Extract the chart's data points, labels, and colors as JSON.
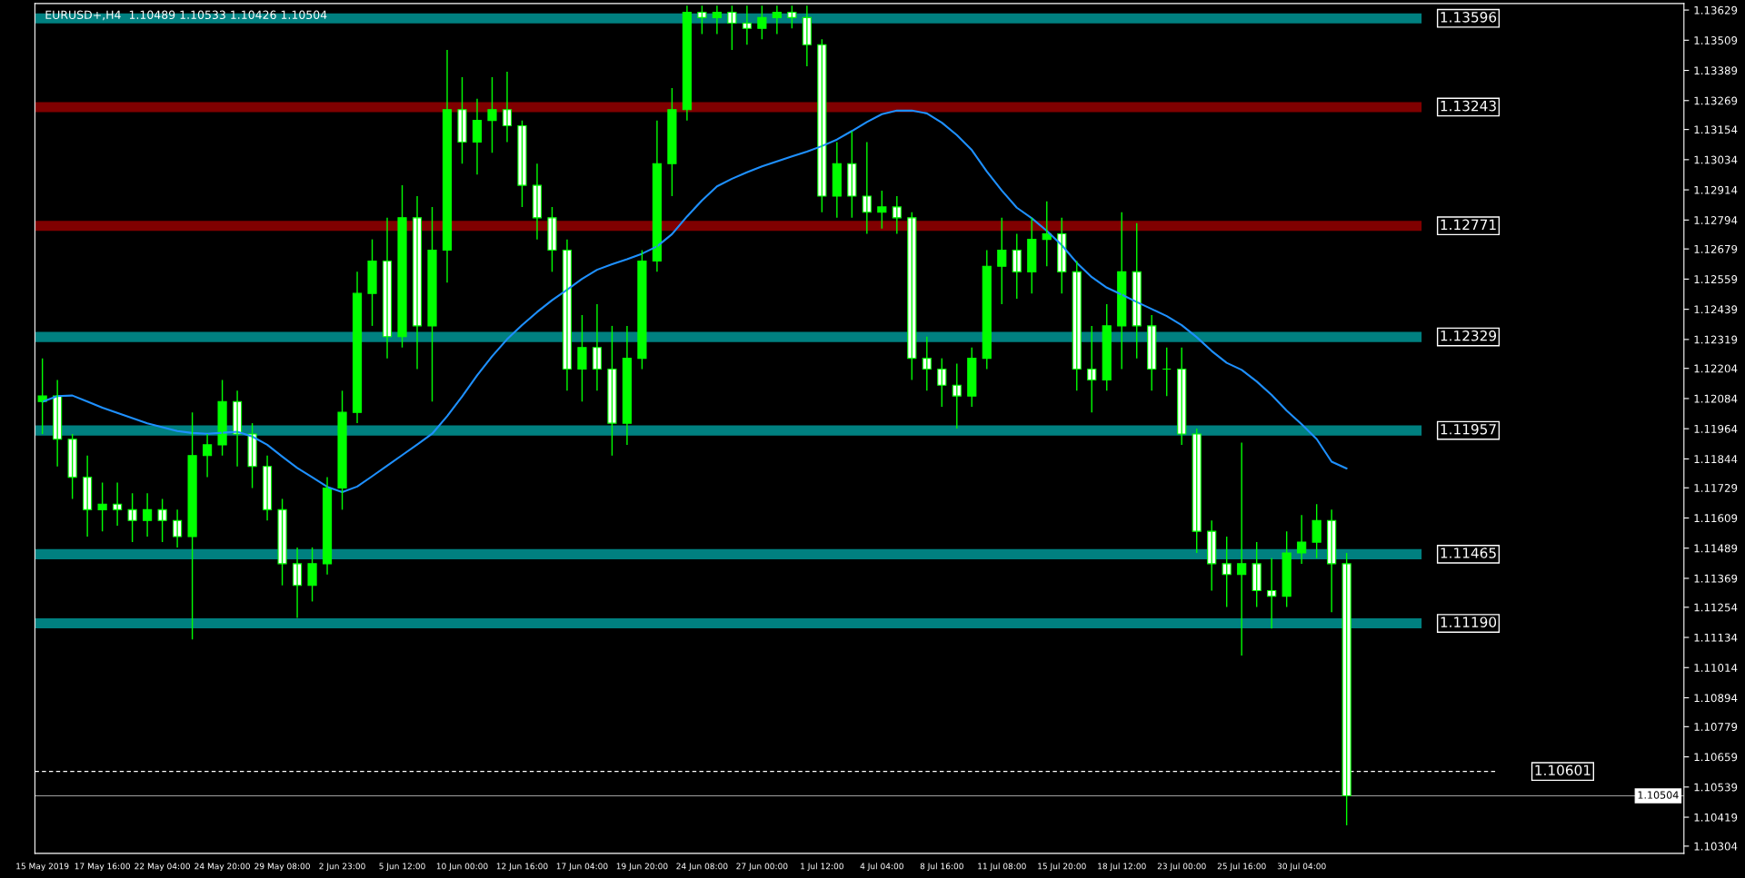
{
  "chart_data": {
    "type": "candlestick",
    "title": "EURUSD+,H4  1.10489 1.10533 1.10426 1.10504",
    "categories": [
      "15 May 2019",
      null,
      null,
      null,
      "17 May 16:00",
      null,
      null,
      null,
      "22 May 04:00",
      null,
      null,
      null,
      "24 May 20:00",
      null,
      null,
      null,
      "29 May 08:00",
      null,
      null,
      null,
      "2 Jun 23:00",
      null,
      null,
      null,
      "5 Jun 12:00",
      null,
      null,
      null,
      "10 Jun 00:00",
      null,
      null,
      null,
      "12 Jun 16:00",
      null,
      null,
      null,
      "17 Jun 04:00",
      null,
      null,
      null,
      "19 Jun 20:00",
      null,
      null,
      null,
      "24 Jun 08:00",
      null,
      null,
      null,
      "27 Jun 00:00",
      null,
      null,
      null,
      "1 Jul 12:00",
      null,
      null,
      null,
      "4 Jul 04:00",
      null,
      null,
      null,
      "8 Jul 16:00",
      null,
      null,
      null,
      "11 Jul 08:00",
      null,
      null,
      null,
      "15 Jul 20:00",
      null,
      null,
      null,
      "18 Jul 12:00",
      null,
      null,
      null,
      "23 Jul 00:00",
      null,
      null,
      null,
      "25 Jul 16:00",
      null,
      null,
      null,
      "30 Jul 04:00",
      null,
      null,
      null
    ],
    "ohlc": [
      [
        1.12072,
        1.12244,
        1.11943,
        1.12094
      ],
      [
        1.12094,
        1.12158,
        1.11814,
        1.11922
      ],
      [
        1.11922,
        1.11943,
        1.11685,
        1.11771
      ],
      [
        1.11771,
        1.11857,
        1.11535,
        1.11642
      ],
      [
        1.11642,
        1.1175,
        1.11556,
        1.11664
      ],
      [
        1.11664,
        1.1175,
        1.11578,
        1.11642
      ],
      [
        1.11642,
        1.11707,
        1.11513,
        1.11599
      ],
      [
        1.11599,
        1.11707,
        1.11535,
        1.11642
      ],
      [
        1.11642,
        1.11685,
        1.11513,
        1.11599
      ],
      [
        1.11599,
        1.11642,
        1.11492,
        1.11535
      ],
      [
        1.11535,
        1.12029,
        1.11126,
        1.11857
      ],
      [
        1.11857,
        1.11943,
        1.11771,
        1.119
      ],
      [
        1.119,
        1.12158,
        1.11857,
        1.12072
      ],
      [
        1.12072,
        1.12115,
        1.11814,
        1.11943
      ],
      [
        1.11943,
        1.11986,
        1.11728,
        1.11814
      ],
      [
        1.11814,
        1.11857,
        1.11599,
        1.11642
      ],
      [
        1.11642,
        1.11685,
        1.11341,
        1.11427
      ],
      [
        1.11427,
        1.11492,
        1.11212,
        1.11341
      ],
      [
        1.11341,
        1.11492,
        1.11277,
        1.11427
      ],
      [
        1.11427,
        1.11771,
        1.11384,
        1.11728
      ],
      [
        1.11728,
        1.12115,
        1.11642,
        1.12029
      ],
      [
        1.12029,
        1.12588,
        1.11986,
        1.12502
      ],
      [
        1.12502,
        1.12717,
        1.12373,
        1.12631
      ],
      [
        1.12631,
        1.12803,
        1.12244,
        1.1233
      ],
      [
        1.1233,
        1.12932,
        1.12287,
        1.12803
      ],
      [
        1.12803,
        1.12889,
        1.12201,
        1.12373
      ],
      [
        1.12373,
        1.12846,
        1.12072,
        1.12674
      ],
      [
        1.12674,
        1.1347,
        1.12545,
        1.13233
      ],
      [
        1.13233,
        1.13362,
        1.13018,
        1.13104
      ],
      [
        1.13104,
        1.13276,
        1.12975,
        1.1319
      ],
      [
        1.1319,
        1.13362,
        1.13061,
        1.13233
      ],
      [
        1.13233,
        1.13384,
        1.13104,
        1.13169
      ],
      [
        1.13169,
        1.1319,
        1.12846,
        1.12932
      ],
      [
        1.12932,
        1.13018,
        1.12717,
        1.12803
      ],
      [
        1.12803,
        1.12846,
        1.12588,
        1.12674
      ],
      [
        1.12674,
        1.12717,
        1.12115,
        1.12201
      ],
      [
        1.12201,
        1.12416,
        1.12072,
        1.12287
      ],
      [
        1.12287,
        1.12459,
        1.12115,
        1.12201
      ],
      [
        1.12201,
        1.12373,
        1.11857,
        1.11986
      ],
      [
        1.11986,
        1.12373,
        1.119,
        1.12244
      ],
      [
        1.12244,
        1.12674,
        1.12201,
        1.12631
      ],
      [
        1.12631,
        1.1319,
        1.12588,
        1.13018
      ],
      [
        1.13018,
        1.13319,
        1.12889,
        1.13233
      ],
      [
        1.13233,
        1.13646,
        1.1319,
        1.1362
      ],
      [
        1.1362,
        1.13646,
        1.13534,
        1.13599
      ],
      [
        1.13599,
        1.13646,
        1.13534,
        1.1362
      ],
      [
        1.1362,
        1.13646,
        1.1347,
        1.13577
      ],
      [
        1.13577,
        1.13646,
        1.13491,
        1.13556
      ],
      [
        1.13556,
        1.13646,
        1.13513,
        1.13599
      ],
      [
        1.13599,
        1.13646,
        1.13534,
        1.1362
      ],
      [
        1.1362,
        1.13646,
        1.13556,
        1.13599
      ],
      [
        1.13599,
        1.13646,
        1.13405,
        1.13491
      ],
      [
        1.13491,
        1.13513,
        1.12825,
        1.12889
      ],
      [
        1.12889,
        1.13104,
        1.12803,
        1.13018
      ],
      [
        1.13018,
        1.13147,
        1.12803,
        1.12889
      ],
      [
        1.12889,
        1.13104,
        1.12739,
        1.12825
      ],
      [
        1.12825,
        1.12911,
        1.1276,
        1.12846
      ],
      [
        1.12846,
        1.12889,
        1.12739,
        1.12803
      ],
      [
        1.12803,
        1.12825,
        1.12158,
        1.12244
      ],
      [
        1.12244,
        1.1233,
        1.12115,
        1.12201
      ],
      [
        1.12201,
        1.12244,
        1.12051,
        1.12137
      ],
      [
        1.12137,
        1.12223,
        1.11965,
        1.12094
      ],
      [
        1.12094,
        1.12287,
        1.12051,
        1.12244
      ],
      [
        1.12244,
        1.12674,
        1.12201,
        1.1261
      ],
      [
        1.1261,
        1.12803,
        1.12459,
        1.12674
      ],
      [
        1.12674,
        1.12739,
        1.12481,
        1.12588
      ],
      [
        1.12588,
        1.12803,
        1.12502,
        1.12717
      ],
      [
        1.12717,
        1.12868,
        1.1261,
        1.12739
      ],
      [
        1.12739,
        1.12803,
        1.12502,
        1.12588
      ],
      [
        1.12588,
        1.12631,
        1.12115,
        1.12201
      ],
      [
        1.12201,
        1.12373,
        1.12029,
        1.12158
      ],
      [
        1.12158,
        1.12459,
        1.12115,
        1.12373
      ],
      [
        1.12373,
        1.12825,
        1.12201,
        1.12588
      ],
      [
        1.12588,
        1.12782,
        1.12244,
        1.12373
      ],
      [
        1.12373,
        1.12416,
        1.12115,
        1.12201
      ],
      [
        1.12201,
        1.12287,
        1.12094,
        1.12201
      ],
      [
        1.12201,
        1.12287,
        1.119,
        1.11943
      ],
      [
        1.11943,
        1.11965,
        1.1147,
        1.11556
      ],
      [
        1.11556,
        1.11599,
        1.1132,
        1.11427
      ],
      [
        1.11427,
        1.11535,
        1.11255,
        1.11384
      ],
      [
        1.11384,
        1.11909,
        1.11062,
        1.11427
      ],
      [
        1.11427,
        1.11513,
        1.11255,
        1.1132
      ],
      [
        1.1132,
        1.11449,
        1.11169,
        1.11298
      ],
      [
        1.11298,
        1.11556,
        1.11255,
        1.1147
      ],
      [
        1.1147,
        1.11621,
        1.11427,
        1.11513
      ],
      [
        1.11513,
        1.11664,
        1.11449,
        1.11599
      ],
      [
        1.11599,
        1.11642,
        1.11234,
        1.11427
      ],
      [
        1.11427,
        1.1147,
        1.10387,
        1.10504
      ]
    ],
    "series": [
      {
        "type": "line",
        "color": "#1e90ff",
        "values": [
          1.12071,
          1.12094,
          1.12096,
          1.12072,
          1.12048,
          1.12027,
          1.12006,
          1.11985,
          1.1197,
          1.11955,
          1.11947,
          1.11944,
          1.11948,
          1.11952,
          1.11933,
          1.119,
          1.11853,
          1.11808,
          1.11771,
          1.11733,
          1.11712,
          1.11734,
          1.11775,
          1.11817,
          1.11859,
          1.11901,
          1.11944,
          1.12014,
          1.12092,
          1.12176,
          1.12252,
          1.1232,
          1.12376,
          1.12428,
          1.12475,
          1.12517,
          1.1256,
          1.12596,
          1.12618,
          1.12638,
          1.1266,
          1.12689,
          1.12738,
          1.12808,
          1.12872,
          1.12928,
          1.12958,
          1.12984,
          1.13007,
          1.13027,
          1.13047,
          1.13066,
          1.13088,
          1.13114,
          1.13148,
          1.13184,
          1.13215,
          1.13229,
          1.13229,
          1.13218,
          1.13181,
          1.13132,
          1.13072,
          1.12987,
          1.12911,
          1.12843,
          1.12801,
          1.12751,
          1.12694,
          1.12624,
          1.12567,
          1.12525,
          1.12497,
          1.12468,
          1.1244,
          1.12412,
          1.12376,
          1.12328,
          1.12273,
          1.12226,
          1.12198,
          1.12152,
          1.12098,
          1.12036,
          1.11982,
          1.11923,
          1.11833,
          1.11806
        ]
      }
    ],
    "ylim": [
      1.10275,
      1.13655
    ],
    "yticks": [
      1.13629,
      1.13509,
      1.13389,
      1.13269,
      1.13154,
      1.13034,
      1.12914,
      1.12794,
      1.12679,
      1.12559,
      1.12439,
      1.12319,
      1.12204,
      1.12084,
      1.11964,
      1.11844,
      1.11729,
      1.11609,
      1.11489,
      1.11369,
      1.11254,
      1.11134,
      1.11014,
      1.10894,
      1.10779,
      1.10659,
      1.10539,
      1.10419,
      1.10304
    ],
    "bands": [
      {
        "axis": "y",
        "from": 1.13576,
        "to": 1.13616,
        "label": "1.13596",
        "color": "#008080"
      },
      {
        "axis": "y",
        "from": 1.13223,
        "to": 1.13263,
        "label": "1.13243",
        "color": "#800000"
      },
      {
        "axis": "y",
        "from": 1.12751,
        "to": 1.12791,
        "label": "1.12771",
        "color": "#800000"
      },
      {
        "axis": "y",
        "from": 1.12309,
        "to": 1.12349,
        "label": "1.12329",
        "color": "#008080"
      },
      {
        "axis": "y",
        "from": 1.11937,
        "to": 1.11977,
        "label": "1.11957",
        "color": "#008080"
      },
      {
        "axis": "y",
        "from": 1.11445,
        "to": 1.11485,
        "label": "1.11465",
        "color": "#008080"
      },
      {
        "axis": "y",
        "from": 1.1117,
        "to": 1.1121,
        "label": "1.11190",
        "color": "#008080"
      }
    ],
    "ref_lines": [
      {
        "axis": "y",
        "value": 1.10601,
        "label": "1.10601",
        "color": "#ffffff",
        "line_style": "dashed"
      },
      {
        "axis": "y",
        "value": 1.10504,
        "label": "1.10504",
        "color": "#a0a0a0",
        "line_style": "solid"
      }
    ],
    "grid": false
  }
}
